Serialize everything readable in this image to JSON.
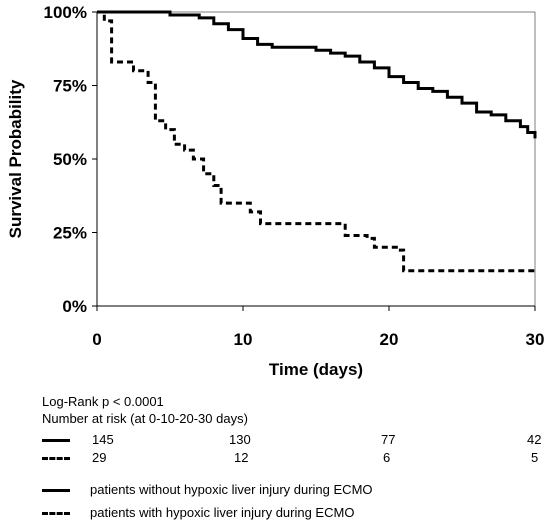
{
  "chart_data": {
    "type": "line",
    "xlabel": "Time (days)",
    "ylabel": "Survival Probability",
    "xlim": [
      0,
      30
    ],
    "ylim": [
      0,
      100
    ],
    "x_ticks": [
      "0",
      "10",
      "20",
      "30"
    ],
    "y_ticks": [
      "0%",
      "25%",
      "50%",
      "75%",
      "100%"
    ],
    "grid": false,
    "series": [
      {
        "name": "patients without hypoxic liver injury during ECMO",
        "style": "solid",
        "color": "#000000",
        "points": [
          [
            0,
            100
          ],
          [
            3,
            100
          ],
          [
            5,
            99
          ],
          [
            7,
            98
          ],
          [
            8,
            96
          ],
          [
            9,
            94
          ],
          [
            10,
            91
          ],
          [
            11,
            89
          ],
          [
            12,
            88
          ],
          [
            14,
            88
          ],
          [
            15,
            87
          ],
          [
            16,
            86
          ],
          [
            17,
            85
          ],
          [
            18,
            83
          ],
          [
            19,
            81
          ],
          [
            20,
            78
          ],
          [
            21,
            76
          ],
          [
            22,
            74
          ],
          [
            23,
            73
          ],
          [
            24,
            71
          ],
          [
            25,
            69
          ],
          [
            26,
            66
          ],
          [
            27,
            65
          ],
          [
            28,
            63
          ],
          [
            29,
            61
          ],
          [
            29.5,
            59
          ],
          [
            30,
            57
          ]
        ]
      },
      {
        "name": "patients with hypoxic liver injury during ECMO",
        "style": "dashed",
        "color": "#000000",
        "points": [
          [
            0,
            100
          ],
          [
            0.5,
            97
          ],
          [
            1,
            83
          ],
          [
            2,
            83
          ],
          [
            2.5,
            80
          ],
          [
            3.5,
            76
          ],
          [
            4,
            63
          ],
          [
            4.7,
            60
          ],
          [
            5.3,
            55
          ],
          [
            6,
            53
          ],
          [
            6.6,
            50
          ],
          [
            7.3,
            45
          ],
          [
            8,
            41
          ],
          [
            8.5,
            35
          ],
          [
            9.5,
            35
          ],
          [
            10.5,
            32
          ],
          [
            11.2,
            28
          ],
          [
            16.5,
            28
          ],
          [
            17,
            24
          ],
          [
            18.5,
            23
          ],
          [
            19,
            20
          ],
          [
            20.5,
            19
          ],
          [
            21,
            12
          ],
          [
            30,
            12
          ]
        ]
      }
    ]
  },
  "footnote": {
    "logrank": "Log-Rank p < 0.0001",
    "risk_title": "Number at risk (at 0-10-20-30 days)",
    "risk_rows": [
      {
        "style": "solid",
        "values": [
          "145",
          "130",
          "77",
          "42"
        ]
      },
      {
        "style": "dashed",
        "values": [
          "29",
          "12",
          "6",
          "5"
        ]
      }
    ]
  },
  "legend": [
    {
      "style": "solid",
      "label": "patients without hypoxic liver injury during ECMO"
    },
    {
      "style": "dashed",
      "label": "patients with hypoxic liver injury during ECMO"
    }
  ]
}
